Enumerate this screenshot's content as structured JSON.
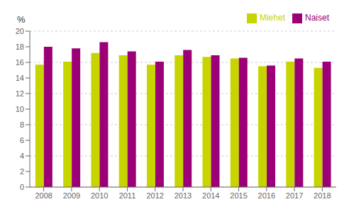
{
  "chart_data": {
    "type": "bar",
    "ylabel": "%",
    "categories": [
      "2008",
      "2009",
      "2010",
      "2011",
      "2012",
      "2013",
      "2014",
      "2015",
      "2016",
      "2017",
      "2018"
    ],
    "series": [
      {
        "name": "Miehet",
        "color": "#c8d400",
        "values": [
          15.7,
          16.1,
          17.2,
          16.9,
          15.7,
          16.9,
          16.7,
          16.5,
          15.5,
          16.1,
          15.3
        ]
      },
      {
        "name": "Naiset",
        "color": "#9b0077",
        "values": [
          18.0,
          17.8,
          18.6,
          17.4,
          16.1,
          17.6,
          16.9,
          16.6,
          15.6,
          16.5,
          16.1
        ]
      }
    ],
    "ylim": [
      0,
      20
    ],
    "yticks": [
      0,
      2,
      4,
      6,
      8,
      10,
      12,
      14,
      16,
      18,
      20
    ],
    "grid": true,
    "legend": "upper right"
  }
}
